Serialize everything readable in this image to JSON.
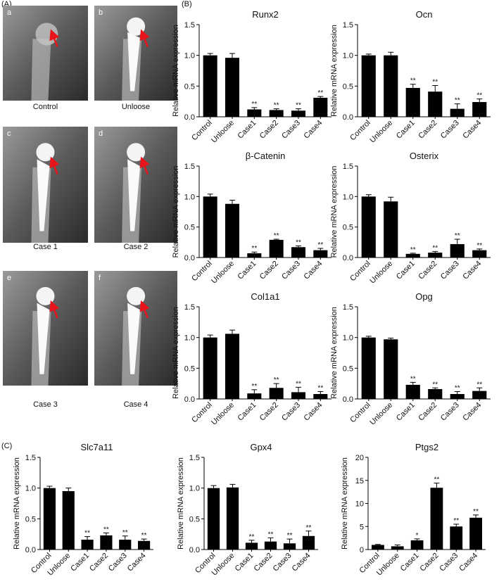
{
  "panels": {
    "A": {
      "label": "(A)",
      "images": [
        {
          "letter": "a",
          "caption": "Control"
        },
        {
          "letter": "b",
          "caption": "Unloose"
        },
        {
          "letter": "c",
          "caption": "Case 1"
        },
        {
          "letter": "d",
          "caption": "Case 2"
        },
        {
          "letter": "e",
          "caption": "Case 3"
        },
        {
          "letter": "f",
          "caption": "Case 4"
        }
      ]
    },
    "B": {
      "label": "(B)"
    },
    "C": {
      "label": "(C)"
    }
  },
  "chart_data": [
    {
      "type": "bar",
      "title": "Runx2",
      "y_label": "Relative mRNA expression",
      "color": "#000000",
      "categories": [
        "Control",
        "Unloose",
        "Case1",
        "Case2",
        "Case3",
        "Case4"
      ],
      "values": [
        1.0,
        0.96,
        0.12,
        0.11,
        0.1,
        0.31
      ],
      "errors": [
        0.03,
        0.07,
        0.03,
        0.02,
        0.03,
        0.02
      ],
      "annotations": [
        null,
        null,
        "**",
        "**",
        "**",
        "**"
      ],
      "ylim": [
        0,
        1.5
      ],
      "yticks": [
        {
          "value": 0,
          "label": "0.0"
        },
        {
          "value": 0.5,
          "label": "0.5"
        },
        {
          "value": 1,
          "label": "1.0"
        },
        {
          "value": 1.5,
          "label": "1.5"
        }
      ]
    },
    {
      "type": "bar",
      "title": "Ocn",
      "y_label": "Relative mRNA expression",
      "color": "#000000",
      "categories": [
        "Control",
        "Unloose",
        "Case1",
        "Case2",
        "Case3",
        "Case4"
      ],
      "values": [
        1.0,
        1.0,
        0.47,
        0.41,
        0.13,
        0.24
      ],
      "errors": [
        0.02,
        0.05,
        0.06,
        0.1,
        0.08,
        0.05
      ],
      "annotations": [
        null,
        null,
        "**",
        "**",
        "**",
        "**"
      ],
      "ylim": [
        0,
        1.5
      ],
      "yticks": [
        {
          "value": 0,
          "label": "0.0"
        },
        {
          "value": 0.5,
          "label": "0.5"
        },
        {
          "value": 1,
          "label": "1.0"
        },
        {
          "value": 1.5,
          "label": "1.5"
        }
      ]
    },
    {
      "type": "bar",
      "title": "β-Catenin",
      "y_label": "Relative mRNA expression",
      "color": "#000000",
      "categories": [
        "Control",
        "Unloose",
        "Case1",
        "Case2",
        "Case3",
        "Case4"
      ],
      "values": [
        1.0,
        0.88,
        0.07,
        0.29,
        0.17,
        0.12
      ],
      "errors": [
        0.04,
        0.06,
        0.02,
        0.01,
        0.02,
        0.03
      ],
      "annotations": [
        null,
        null,
        "**",
        "**",
        "**",
        "**"
      ],
      "ylim": [
        0,
        1.5
      ],
      "yticks": [
        {
          "value": 0,
          "label": "0.0"
        },
        {
          "value": 0.5,
          "label": "0.5"
        },
        {
          "value": 1,
          "label": "1.0"
        },
        {
          "value": 1.5,
          "label": "1.5"
        }
      ]
    },
    {
      "type": "bar",
      "title": "Osterix",
      "y_label": "Relative mRNA expression",
      "color": "#000000",
      "categories": [
        "Control",
        "Unloose",
        "Case1",
        "Case2",
        "Case3",
        "Case4"
      ],
      "values": [
        1.0,
        0.92,
        0.06,
        0.08,
        0.22,
        0.12
      ],
      "errors": [
        0.03,
        0.07,
        0.01,
        0.02,
        0.08,
        0.02
      ],
      "annotations": [
        null,
        null,
        "**",
        "**",
        "**",
        "**"
      ],
      "ylim": [
        0,
        1.5
      ],
      "yticks": [
        {
          "value": 0,
          "label": "0.0"
        },
        {
          "value": 0.5,
          "label": "0.5"
        },
        {
          "value": 1,
          "label": "1.0"
        },
        {
          "value": 1.5,
          "label": "1.5"
        }
      ]
    },
    {
      "type": "bar",
      "title": "Col1a1",
      "y_label": "Relative mRNA expression",
      "color": "#000000",
      "categories": [
        "Control",
        "Unloose",
        "Case1",
        "Case2",
        "Case3",
        "Case4"
      ],
      "values": [
        1.0,
        1.06,
        0.09,
        0.18,
        0.11,
        0.08
      ],
      "errors": [
        0.04,
        0.06,
        0.06,
        0.07,
        0.08,
        0.04
      ],
      "annotations": [
        null,
        null,
        "**",
        "**",
        "**",
        "**"
      ],
      "ylim": [
        0,
        1.5
      ],
      "yticks": [
        {
          "value": 0,
          "label": "0.0"
        },
        {
          "value": 0.5,
          "label": "0.5"
        },
        {
          "value": 1,
          "label": "1.0"
        },
        {
          "value": 1.5,
          "label": "1.5"
        }
      ]
    },
    {
      "type": "bar",
      "title": "Opg",
      "y_label": "Relative mRNA expression",
      "color": "#000000",
      "categories": [
        "Control",
        "Unloose",
        "Case1",
        "Case2",
        "Case3",
        "Case4"
      ],
      "values": [
        1.0,
        0.97,
        0.23,
        0.16,
        0.08,
        0.13
      ],
      "errors": [
        0.02,
        0.02,
        0.04,
        0.02,
        0.04,
        0.05
      ],
      "annotations": [
        null,
        null,
        "**",
        "**",
        "**",
        "**"
      ],
      "ylim": [
        0,
        1.5
      ],
      "yticks": [
        {
          "value": 0,
          "label": "0.0"
        },
        {
          "value": 0.5,
          "label": "0.5"
        },
        {
          "value": 1,
          "label": "1.0"
        },
        {
          "value": 1.5,
          "label": "1.5"
        }
      ]
    },
    {
      "type": "bar",
      "title": "Slc7a11",
      "y_label": "Relative mRNA expression",
      "color": "#000000",
      "categories": [
        "Control",
        "Unloose",
        "Case1",
        "Case2",
        "Case3",
        "Case4"
      ],
      "values": [
        1.0,
        0.95,
        0.16,
        0.23,
        0.16,
        0.14
      ],
      "errors": [
        0.03,
        0.05,
        0.05,
        0.04,
        0.06,
        0.03
      ],
      "annotations": [
        null,
        null,
        "**",
        "**",
        "**",
        "**"
      ],
      "ylim": [
        0,
        1.5
      ],
      "yticks": [
        {
          "value": 0,
          "label": "0.0"
        },
        {
          "value": 0.5,
          "label": "0.5"
        },
        {
          "value": 1,
          "label": "1.0"
        },
        {
          "value": 1.5,
          "label": "1.5"
        }
      ]
    },
    {
      "type": "bar",
      "title": "Gpx4",
      "y_label": "Relative mRNA expression",
      "color": "#000000",
      "categories": [
        "Control",
        "Unloose",
        "Case1",
        "Case2",
        "Case3",
        "Case4"
      ],
      "values": [
        1.0,
        1.01,
        0.11,
        0.13,
        0.1,
        0.22
      ],
      "errors": [
        0.04,
        0.05,
        0.04,
        0.06,
        0.07,
        0.08
      ],
      "annotations": [
        null,
        null,
        "**",
        "**",
        "**",
        "**"
      ],
      "ylim": [
        0,
        1.5
      ],
      "yticks": [
        {
          "value": 0,
          "label": "0.0"
        },
        {
          "value": 0.5,
          "label": "0.5"
        },
        {
          "value": 1,
          "label": "1.0"
        },
        {
          "value": 1.5,
          "label": "1.5"
        }
      ]
    },
    {
      "type": "bar",
      "title": "Ptgs2",
      "y_label": "Relative mRNA expression",
      "color": "#000000",
      "categories": [
        "Control",
        "Unloose",
        "Case1",
        "Case2",
        "Case3",
        "Case4"
      ],
      "values": [
        1.0,
        0.7,
        2.0,
        13.4,
        5.0,
        6.9
      ],
      "errors": [
        0.1,
        0.3,
        0.3,
        1.0,
        0.5,
        0.6
      ],
      "annotations": [
        null,
        null,
        "*",
        "**",
        "**",
        "**"
      ],
      "ylim": [
        0,
        20
      ],
      "yticks": [
        0,
        5,
        10,
        15,
        20
      ]
    }
  ]
}
